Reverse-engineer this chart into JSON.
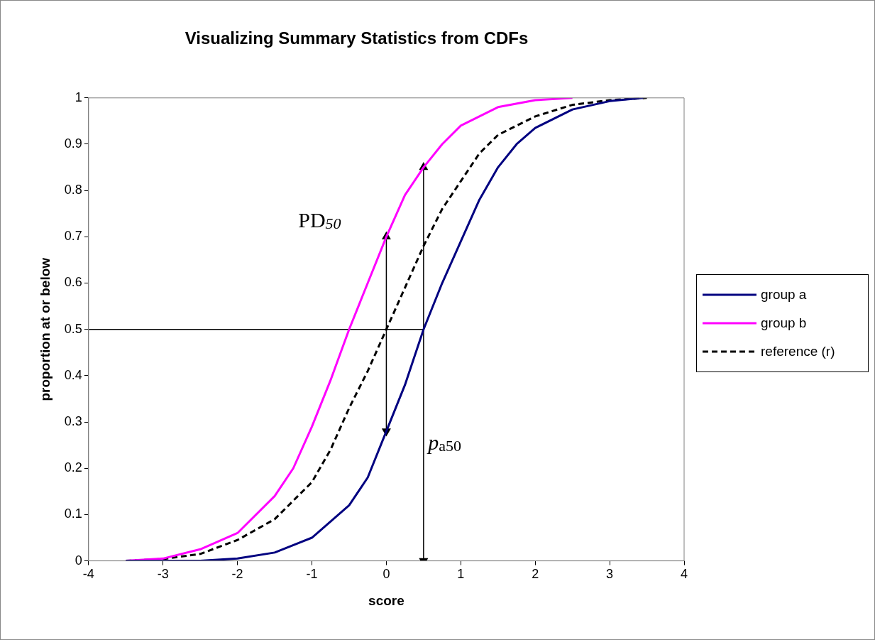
{
  "chart_data": {
    "type": "line",
    "title": "Visualizing Summary Statistics from CDFs",
    "xlabel": "score",
    "ylabel": "proportion at or below",
    "xlim": [
      -4,
      4
    ],
    "xticks": [
      -4,
      -3,
      -2,
      -1,
      0,
      1,
      2,
      3,
      4
    ],
    "ylim": [
      0,
      1
    ],
    "yticks": [
      0,
      0.1,
      0.2,
      0.3,
      0.4,
      0.5,
      0.6,
      0.7,
      0.8,
      0.9,
      1
    ],
    "grid": false,
    "legend": "right",
    "marker": "none",
    "line_style": "solid",
    "series": [
      {
        "name": "group a",
        "color": "#000080",
        "x": [
          -3.5,
          -2.5,
          -2,
          -1.5,
          -1,
          -0.5,
          -0.25,
          0,
          0.25,
          0.5,
          0.75,
          1,
          1.25,
          1.5,
          1.75,
          2,
          2.5,
          3,
          3.45
        ],
        "values": [
          0,
          0,
          0.005,
          0.018,
          0.05,
          0.12,
          0.18,
          0.28,
          0.38,
          0.5,
          0.6,
          0.69,
          0.78,
          0.85,
          0.9,
          0.935,
          0.975,
          0.993,
          1
        ]
      },
      {
        "name": "group b",
        "color": "#ff00ff",
        "x": [
          -3.5,
          -3,
          -2.5,
          -2,
          -1.5,
          -1.25,
          -1,
          -0.75,
          -0.5,
          -0.25,
          0,
          0.25,
          0.5,
          0.75,
          1,
          1.5,
          2,
          2.5
        ],
        "values": [
          0,
          0.005,
          0.025,
          0.06,
          0.14,
          0.2,
          0.29,
          0.39,
          0.5,
          0.6,
          0.7,
          0.79,
          0.85,
          0.9,
          0.94,
          0.98,
          0.995,
          1
        ]
      },
      {
        "name": "reference (r)",
        "color": "#000000",
        "line_style": "dashed",
        "x": [
          -3.5,
          -3,
          -2.5,
          -2,
          -1.5,
          -1,
          -0.75,
          -0.5,
          -0.25,
          0,
          0.25,
          0.5,
          0.75,
          1,
          1.25,
          1.5,
          2,
          2.5,
          3,
          3.5
        ],
        "values": [
          0,
          0.004,
          0.015,
          0.045,
          0.09,
          0.17,
          0.24,
          0.33,
          0.41,
          0.5,
          0.59,
          0.68,
          0.76,
          0.82,
          0.88,
          0.92,
          0.96,
          0.985,
          0.995,
          1
        ]
      },
      {
        "color": "#000000",
        "x": [
          -4,
          0.5
        ],
        "values": [
          0.5,
          0.5
        ]
      },
      {
        "color": "#000000",
        "marker": "triangle",
        "x": [
          0.5,
          0.5
        ],
        "values": [
          0,
          0.85
        ]
      },
      {
        "color": "#000000",
        "marker": "triangle",
        "x": [
          0,
          0
        ],
        "values": [
          0.28,
          0.7
        ]
      }
    ],
    "annotations": [
      "PD$_{50}$",
      "p$_{a50}$"
    ]
  }
}
